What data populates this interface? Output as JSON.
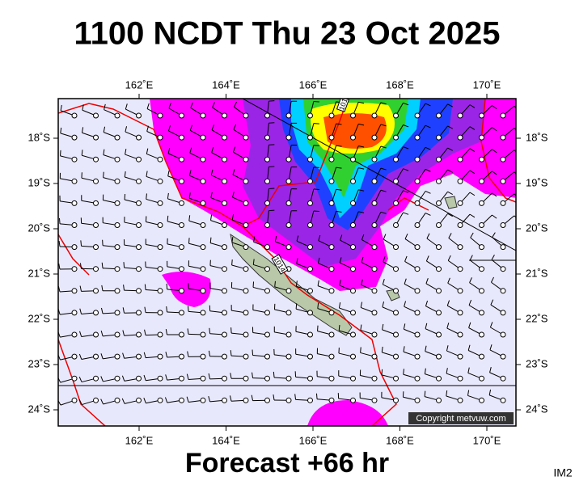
{
  "title": "1100 NCDT Thu 23 Oct 2025",
  "map": {
    "lon_labels": [
      "162˚E",
      "164˚E",
      "166˚E",
      "168˚E",
      "170˚E"
    ],
    "lat_labels": [
      "18˚S",
      "19˚S",
      "20˚S",
      "21˚S",
      "22˚S",
      "23˚S",
      "24˚S"
    ],
    "isobar_labels": [
      "1014",
      "101"
    ]
  },
  "footer": "Forecast +66 hr",
  "copyright": "Copyright metvuw.com",
  "image_id": "IM2"
}
